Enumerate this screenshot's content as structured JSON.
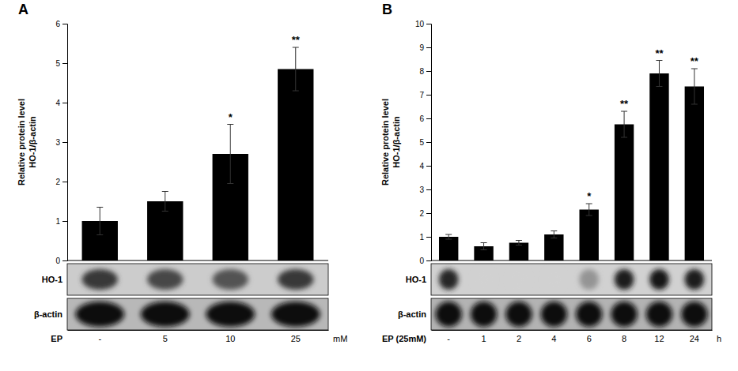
{
  "chart_data": [
    {
      "type": "bar",
      "title": "A",
      "categories": [
        "-",
        "5",
        "10",
        "25"
      ],
      "values": [
        1.0,
        1.5,
        2.7,
        4.85
      ],
      "errors": [
        0.35,
        0.25,
        0.75,
        0.55
      ],
      "significance": [
        null,
        null,
        "*",
        "**"
      ],
      "ylabel": "Relative protein level\nHO-1/β-actin",
      "xlabel": "EP",
      "x_unit": "mM",
      "ylim": [
        0,
        6
      ],
      "yticks": [
        0,
        1,
        2,
        3,
        4,
        5,
        6
      ],
      "color": "#000000",
      "grid": false,
      "blots": [
        {
          "label": "HO-1",
          "background": 0.8,
          "bands": [
            0.22,
            0.28,
            0.32,
            0.22
          ]
        },
        {
          "label": "β-actin",
          "background": 0.72,
          "bands": [
            0.05,
            0.05,
            0.05,
            0.05
          ]
        }
      ]
    },
    {
      "type": "bar",
      "title": "B",
      "categories": [
        "-",
        "1",
        "2",
        "4",
        "6",
        "8",
        "12",
        "24"
      ],
      "values": [
        1.0,
        0.6,
        0.75,
        1.1,
        2.15,
        5.75,
        7.9,
        7.35
      ],
      "errors": [
        0.1,
        0.15,
        0.1,
        0.15,
        0.25,
        0.55,
        0.55,
        0.75
      ],
      "significance": [
        null,
        null,
        null,
        null,
        "*",
        "**",
        "**",
        "**"
      ],
      "ylabel": "Relative protein level\nHO-1/β-actin",
      "xlabel": "EP (25mM)",
      "x_unit": "h",
      "ylim": [
        0,
        10
      ],
      "yticks": [
        0,
        1,
        2,
        3,
        4,
        5,
        6,
        7,
        8,
        9,
        10
      ],
      "color": "#000000",
      "grid": false,
      "blots": [
        {
          "label": "HO-1",
          "background": 0.82,
          "bands": [
            0.15,
            0.82,
            0.82,
            0.82,
            0.58,
            0.12,
            0.08,
            0.1
          ]
        },
        {
          "label": "β-actin",
          "background": 0.7,
          "bands": [
            0.05,
            0.05,
            0.05,
            0.05,
            0.05,
            0.05,
            0.05,
            0.05
          ]
        }
      ]
    }
  ]
}
